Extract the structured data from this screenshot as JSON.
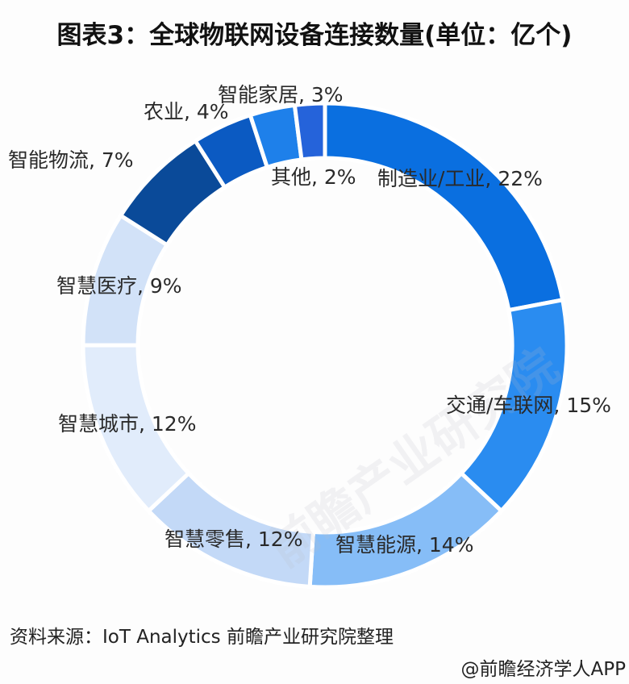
{
  "title": "图表3：全球物联网设备连接数量(单位：亿个)",
  "chart_data": {
    "type": "pie",
    "subtype": "donut",
    "title": "图表3：全球物联网设备连接数量(单位：亿个)",
    "unit": "%",
    "start_angle": "12 o'clock, clockwise",
    "legend": "none (labels placed next to slices)",
    "slices": [
      {
        "name": "制造业/工业",
        "value": 22,
        "label": "制造业/工业, 22%",
        "color": "#0a6fe0"
      },
      {
        "name": "交通/车联网",
        "value": 15,
        "label": "交通/车联网, 15%",
        "color": "#2a8cf0"
      },
      {
        "name": "智慧能源",
        "value": 14,
        "label": "智慧能源, 14%",
        "color": "#86bdf7"
      },
      {
        "name": "智慧零售",
        "value": 12,
        "label": "智慧零售, 12%",
        "color": "#c3d9f7"
      },
      {
        "name": "智慧城市",
        "value": 12,
        "label": "智慧城市, 12%",
        "color": "#e1ecfb"
      },
      {
        "name": "智慧医疗",
        "value": 9,
        "label": "智慧医疗, 9%",
        "color": "#d2e2f8"
      },
      {
        "name": "智能物流",
        "value": 7,
        "label": "智能物流, 7%",
        "color": "#0a4a99"
      },
      {
        "name": "农业",
        "value": 4,
        "label": "农业, 4%",
        "color": "#0b5ac2"
      },
      {
        "name": "智能家居",
        "value": 3,
        "label": "智能家居, 3%",
        "color": "#1e80ea"
      },
      {
        "name": "其他",
        "value": 2,
        "label": "其他, 2%",
        "color": "#2563da"
      }
    ]
  },
  "labels": {
    "manufacturing": "制造业/工业, 22%",
    "transport": "交通/车联网, 15%",
    "energy": "智慧能源, 14%",
    "retail": "智慧零售, 12%",
    "city": "智慧城市, 12%",
    "medical": "智慧医疗, 9%",
    "logistics": "智能物流, 7%",
    "agriculture": "农业, 4%",
    "smarthome": "智能家居, 3%",
    "other": "其他, 2%"
  },
  "footer": {
    "source": "资料来源：IoT Analytics 前瞻产业研究院整理",
    "credit": "@前瞻经济学人APP"
  },
  "watermark": "前瞻产业研究院"
}
